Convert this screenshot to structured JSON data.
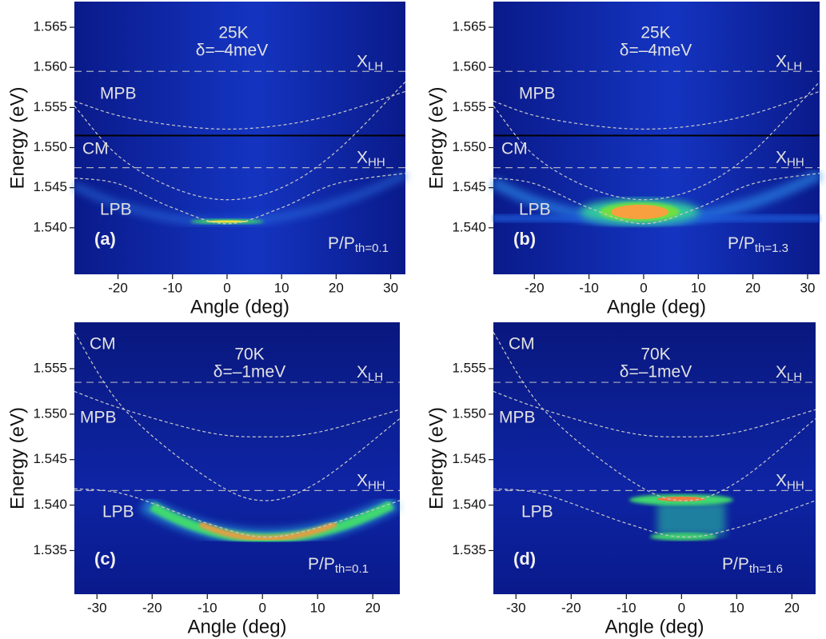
{
  "chart_data": [
    {
      "type": "line",
      "panel_label": "(a)",
      "temperature": "25K",
      "detuning": "δ=–4meV",
      "power": {
        "text": "P/P",
        "sub": "th=0.1"
      },
      "xlabel": "Angle (deg)",
      "ylabel": "Energy (eV)",
      "xlim": [
        -28,
        32.7
      ],
      "ylim": [
        1.5342,
        1.5682
      ],
      "xticks": [
        -20,
        -10,
        0,
        10,
        20,
        30
      ],
      "yticks": [
        {
          "value": 1.54,
          "label": "1.540"
        },
        1.545,
        {
          "value": 1.55,
          "label": "1.550"
        },
        1.555,
        {
          "value": 1.56,
          "label": "1.560"
        },
        1.565
      ],
      "series": [
        {
          "name": "MPB",
          "color": "#c8c8c8",
          "x": [
            -28,
            -20,
            -10,
            0,
            10,
            20,
            32.7
          ],
          "values": [
            1.5558,
            1.554,
            1.5528,
            1.5523,
            1.5528,
            1.5542,
            1.557
          ]
        },
        {
          "name": "CM",
          "color": "#c8c8c8",
          "x": [
            -28,
            -20,
            -10,
            0,
            10,
            20,
            32.7
          ],
          "values": [
            1.5552,
            1.549,
            1.545,
            1.5435,
            1.545,
            1.5495,
            1.5582
          ]
        },
        {
          "name": "LPB",
          "color": "#c8c8c8",
          "x": [
            -28,
            -20,
            -10,
            0,
            10,
            20,
            32.7
          ],
          "values": [
            1.5462,
            1.5455,
            1.5425,
            1.5405,
            1.5425,
            1.5455,
            1.5468
          ]
        }
      ],
      "reference_lines": [
        {
          "name": "X",
          "sub": "LH",
          "value": 1.5595,
          "color": "#c8c8c8"
        },
        {
          "name": "X",
          "sub": "HH",
          "value": 1.5475,
          "color": "#c8c8c8"
        }
      ],
      "solid_lines": [
        1.5515
      ]
    },
    {
      "type": "line",
      "panel_label": "(b)",
      "temperature": "25K",
      "detuning": "δ=–4meV",
      "power": {
        "text": "P/P",
        "sub": "th=1.3"
      },
      "xlabel": "Angle (deg)",
      "ylabel": "Energy (eV)",
      "xlim": [
        -27.5,
        32.2
      ],
      "ylim": [
        1.5342,
        1.5682
      ],
      "xticks": [
        -20,
        -10,
        0,
        10,
        20,
        30
      ],
      "yticks": [
        {
          "value": 1.54,
          "label": "1.540"
        },
        1.545,
        {
          "value": 1.55,
          "label": "1.550"
        },
        1.555,
        {
          "value": 1.56,
          "label": "1.560"
        },
        1.565
      ],
      "series": [
        {
          "name": "MPB",
          "color": "#c8c8c8",
          "x": [
            -27.5,
            -20,
            -10,
            0,
            10,
            20,
            32.2
          ],
          "values": [
            1.5558,
            1.554,
            1.5528,
            1.5523,
            1.5528,
            1.5542,
            1.557
          ]
        },
        {
          "name": "CM",
          "color": "#c8c8c8",
          "x": [
            -27.5,
            -20,
            -10,
            0,
            10,
            20,
            32.2
          ],
          "values": [
            1.5552,
            1.549,
            1.545,
            1.5435,
            1.545,
            1.5495,
            1.5582
          ]
        },
        {
          "name": "LPB",
          "color": "#c8c8c8",
          "x": [
            -27.5,
            -20,
            -10,
            0,
            10,
            20,
            32.2
          ],
          "values": [
            1.5462,
            1.5455,
            1.5425,
            1.5405,
            1.5425,
            1.5455,
            1.5468
          ]
        }
      ],
      "reference_lines": [
        {
          "name": "X",
          "sub": "LH",
          "value": 1.5595,
          "color": "#c8c8c8"
        },
        {
          "name": "X",
          "sub": "HH",
          "value": 1.5475,
          "color": "#c8c8c8"
        }
      ],
      "solid_lines": [
        1.5515
      ]
    },
    {
      "type": "line",
      "panel_label": "(c)",
      "temperature": "70K",
      "detuning": "δ=–1meV",
      "power": {
        "text": "P/P",
        "sub": "th=0.1"
      },
      "xlabel": "Angle (deg)",
      "ylabel": "Energy (eV)",
      "xlim": [
        -34.1,
        24.9
      ],
      "ylim": [
        1.5302,
        1.5601
      ],
      "xticks": [
        -30,
        -20,
        -10,
        0,
        10,
        20
      ],
      "yticks": [
        1.535,
        {
          "value": 1.54,
          "label": "1.540"
        },
        1.545,
        {
          "value": 1.55,
          "label": "1.550"
        },
        1.555
      ],
      "series": [
        {
          "name": "CM",
          "color": "#c8c8c8",
          "x": [
            -34.1,
            -25,
            -10,
            0,
            10,
            24.9
          ],
          "values": [
            1.559,
            1.5505,
            1.543,
            1.5405,
            1.5425,
            1.5495
          ]
        },
        {
          "name": "MPB",
          "color": "#c8c8c8",
          "x": [
            -34.1,
            -25,
            -10,
            0,
            10,
            24.9
          ],
          "values": [
            1.5525,
            1.5505,
            1.548,
            1.5475,
            1.548,
            1.5505
          ]
        },
        {
          "name": "LPB",
          "color": "#c8c8c8",
          "x": [
            -34.1,
            -25,
            -10,
            0,
            10,
            24.9
          ],
          "values": [
            1.5418,
            1.5412,
            1.538,
            1.5365,
            1.5375,
            1.5405
          ]
        }
      ],
      "reference_lines": [
        {
          "name": "X",
          "sub": "LH",
          "value": 1.5535,
          "color": "#c8c8c8"
        },
        {
          "name": "X",
          "sub": "HH",
          "value": 1.5416,
          "color": "#c8c8c8"
        }
      ]
    },
    {
      "type": "line",
      "panel_label": "(d)",
      "temperature": "70K",
      "detuning": "δ=–1meV",
      "power": {
        "text": "P/P",
        "sub": "th=1.6"
      },
      "xlabel": "Angle (deg)",
      "ylabel": "Energy (eV)",
      "xlim": [
        -34.1,
        24.3
      ],
      "ylim": [
        1.5302,
        1.5601
      ],
      "xticks": [
        -30,
        -20,
        -10,
        0,
        10,
        20
      ],
      "yticks": [
        1.535,
        {
          "value": 1.54,
          "label": "1.540"
        },
        1.545,
        {
          "value": 1.55,
          "label": "1.550"
        },
        1.555
      ],
      "series": [
        {
          "name": "CM",
          "color": "#c8c8c8",
          "x": [
            -34.1,
            -25,
            -10,
            0,
            10,
            24.3
          ],
          "values": [
            1.559,
            1.5505,
            1.543,
            1.5405,
            1.5425,
            1.5495
          ]
        },
        {
          "name": "MPB",
          "color": "#c8c8c8",
          "x": [
            -34.1,
            -25,
            -10,
            0,
            10,
            24.3
          ],
          "values": [
            1.5525,
            1.5505,
            1.548,
            1.5475,
            1.548,
            1.5505
          ]
        },
        {
          "name": "LPB",
          "color": "#c8c8c8",
          "x": [
            -34.1,
            -25,
            -10,
            0,
            10,
            24.3
          ],
          "values": [
            1.5418,
            1.5412,
            1.538,
            1.5365,
            1.5375,
            1.5405
          ]
        }
      ],
      "reference_lines": [
        {
          "name": "X",
          "sub": "LH",
          "value": 1.5535,
          "color": "#c8c8c8"
        },
        {
          "name": "X",
          "sub": "HH",
          "value": 1.5416,
          "color": "#c8c8c8"
        }
      ]
    }
  ]
}
